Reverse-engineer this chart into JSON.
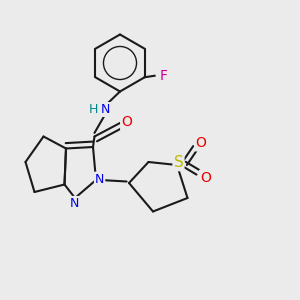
{
  "bg_color": "#ebebeb",
  "bond_color": "#1a1a1a",
  "bond_width": 1.5,
  "dbo": 0.018,
  "atom_colors": {
    "N": "#0000ee",
    "O": "#ee0000",
    "F": "#cc0099",
    "S": "#bbbb00",
    "H": "#008888",
    "C": "#1a1a1a"
  },
  "afs": 9,
  "fig_w": 3.0,
  "fig_h": 3.0,
  "dpi": 100
}
